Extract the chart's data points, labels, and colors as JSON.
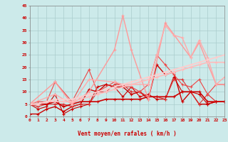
{
  "xlabel": "Vent moyen/en rafales ( km/h )",
  "xlim": [
    0,
    23
  ],
  "ylim": [
    0,
    45
  ],
  "yticks": [
    0,
    5,
    10,
    15,
    20,
    25,
    30,
    35,
    40,
    45
  ],
  "xticks": [
    0,
    1,
    2,
    3,
    4,
    5,
    6,
    7,
    8,
    9,
    10,
    11,
    12,
    13,
    14,
    15,
    16,
    17,
    18,
    19,
    20,
    21,
    22,
    23
  ],
  "bg_color": "#cceaea",
  "grid_color": "#aacccc",
  "lines": [
    {
      "x": [
        0,
        1,
        2,
        3,
        4,
        5,
        6,
        7,
        8,
        9,
        10,
        11,
        12,
        13,
        14,
        15,
        16,
        17,
        18,
        19,
        20,
        21,
        22,
        23
      ],
      "y": [
        1,
        1,
        3,
        4,
        2,
        4,
        5,
        11,
        10,
        13,
        12,
        12,
        9,
        10,
        7,
        21,
        17,
        18,
        6,
        10,
        5,
        5,
        6,
        6
      ],
      "color": "#cc0000",
      "lw": 1.0,
      "marker": "+",
      "ms": 3.0
    },
    {
      "x": [
        0,
        1,
        2,
        3,
        4,
        5,
        6,
        7,
        8,
        9,
        10,
        11,
        12,
        13,
        14,
        15,
        16,
        17,
        18,
        19,
        20,
        21,
        22,
        23
      ],
      "y": [
        5,
        3,
        4,
        9,
        1,
        3,
        4,
        5,
        12,
        13,
        12,
        8,
        12,
        8,
        9,
        7,
        7,
        16,
        10,
        10,
        9,
        5,
        6,
        6
      ],
      "color": "#cc0000",
      "lw": 0.8,
      "marker": "+",
      "ms": 2.5
    },
    {
      "x": [
        0,
        1,
        2,
        3,
        4,
        5,
        6,
        7,
        8,
        9,
        10,
        11,
        12,
        13,
        14,
        15,
        16,
        17,
        18,
        19,
        20,
        21,
        22,
        23
      ],
      "y": [
        5,
        4,
        5,
        5,
        5,
        4,
        5,
        5,
        10,
        10,
        13,
        13,
        10,
        10,
        8,
        8,
        7,
        15,
        15,
        10,
        5,
        9,
        6,
        6
      ],
      "color": "#dd3333",
      "lw": 0.8,
      "marker": "+",
      "ms": 2.5
    },
    {
      "x": [
        0,
        1,
        2,
        3,
        4,
        5,
        6,
        7,
        8,
        9,
        10,
        11,
        12,
        13,
        14,
        15,
        16,
        17,
        18,
        19,
        20,
        21,
        22,
        23
      ],
      "y": [
        5,
        5,
        5,
        6,
        4,
        5,
        6,
        6,
        6,
        7,
        7,
        7,
        7,
        7,
        8,
        8,
        8,
        8,
        10,
        10,
        10,
        6,
        6,
        6
      ],
      "color": "#cc0000",
      "lw": 1.2,
      "marker": "+",
      "ms": 3.0
    },
    {
      "x": [
        0,
        1,
        2,
        3,
        5,
        7,
        8,
        10,
        11,
        12,
        13,
        14,
        15,
        16,
        17,
        18,
        19,
        20,
        21,
        22,
        23
      ],
      "y": [
        5,
        6,
        6,
        14,
        6,
        19,
        10,
        14,
        12,
        12,
        10,
        13,
        25,
        21,
        17,
        13,
        12,
        15,
        9,
        13,
        13
      ],
      "color": "#ee4444",
      "lw": 0.8,
      "marker": "+",
      "ms": 2.5
    },
    {
      "x": [
        0,
        3,
        5,
        7,
        10,
        11,
        12,
        14,
        16,
        19,
        20,
        22,
        23
      ],
      "y": [
        5,
        14,
        5,
        10,
        27,
        41,
        27,
        7,
        38,
        24,
        30,
        13,
        13
      ],
      "color": "#ff9999",
      "lw": 1.0,
      "marker": "+",
      "ms": 3.0
    },
    {
      "x": [
        0,
        3,
        5,
        7,
        10,
        11,
        12,
        14,
        15,
        16,
        17,
        18,
        19,
        20,
        21,
        22,
        23
      ],
      "y": [
        5,
        9,
        5,
        15,
        14,
        13,
        13,
        13,
        25,
        37,
        33,
        32,
        24,
        31,
        24,
        13,
        16
      ],
      "color": "#ffaaaa",
      "lw": 1.0,
      "marker": "+",
      "ms": 2.5
    },
    {
      "x": [
        0,
        1,
        2,
        3,
        4,
        5,
        6,
        7,
        8,
        9,
        10,
        11,
        12,
        13,
        14,
        15,
        16,
        17,
        18,
        19,
        20,
        21,
        22,
        23
      ],
      "y": [
        5,
        5,
        6,
        6,
        6,
        6,
        7,
        8,
        9,
        10,
        11,
        12,
        13,
        14,
        15,
        16,
        17,
        18,
        19,
        20,
        21,
        22,
        22,
        22
      ],
      "color": "#ffbbbb",
      "lw": 1.2,
      "marker": "+",
      "ms": 2.5
    },
    {
      "x": [
        0,
        1,
        2,
        3,
        4,
        5,
        6,
        7,
        8,
        9,
        10,
        11,
        12,
        13,
        14,
        15,
        16,
        17,
        18,
        19,
        20,
        21,
        22,
        23
      ],
      "y": [
        5,
        5,
        6,
        7,
        7,
        7,
        8,
        9,
        10,
        11,
        12,
        13,
        14,
        15,
        16,
        17,
        18,
        19,
        20,
        21,
        22,
        23,
        24,
        25
      ],
      "color": "#ffcccc",
      "lw": 1.2,
      "marker": "+",
      "ms": 2.5
    }
  ]
}
